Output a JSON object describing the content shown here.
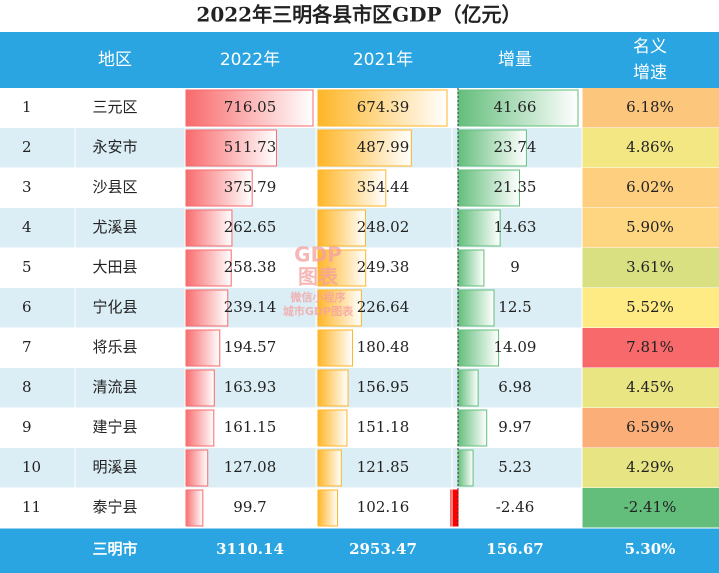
{
  "title": "2022年三明各县市区GDP（亿元）",
  "table": {
    "header": [
      "地区",
      "2022年",
      "2021年",
      "增量"
    ],
    "header_growth": [
      "名义",
      "增速"
    ],
    "rows": [
      [
        1,
        "三元区",
        716.05,
        674.39,
        41.66,
        {
          "value": 6.18,
          "label": "6.18%"
        }
      ],
      [
        2,
        "永安市",
        511.73,
        487.99,
        23.74,
        {
          "value": 4.86,
          "label": "4.86%"
        }
      ],
      [
        3,
        "沙县区",
        375.79,
        354.44,
        21.35,
        {
          "value": 6.02,
          "label": "6.02%"
        }
      ],
      [
        4,
        "尤溪县",
        262.65,
        248.02,
        14.63,
        {
          "value": 5.9,
          "label": "5.90%"
        }
      ],
      [
        5,
        "大田县",
        258.38,
        249.38,
        9,
        {
          "value": 3.61,
          "label": "3.61%"
        }
      ],
      [
        6,
        "宁化县",
        239.14,
        226.64,
        12.5,
        {
          "value": 5.52,
          "label": "5.52%"
        }
      ],
      [
        7,
        "将乐县",
        194.57,
        180.48,
        14.09,
        {
          "value": 7.81,
          "label": "7.81%"
        }
      ],
      [
        8,
        "清流县",
        163.93,
        156.95,
        6.98,
        {
          "value": 4.45,
          "label": "4.45%"
        }
      ],
      [
        9,
        "建宁县",
        161.15,
        151.18,
        9.97,
        {
          "value": 6.59,
          "label": "6.59%"
        }
      ],
      [
        10,
        "明溪县",
        127.08,
        121.85,
        5.23,
        {
          "value": 4.29,
          "label": "4.29%"
        }
      ],
      [
        11,
        "泰宁县",
        99.7,
        102.16,
        -2.46,
        {
          "value": -2.41,
          "label": "-2.41%"
        }
      ]
    ],
    "footer": [
      "三明市",
      3110.14,
      2953.47,
      156.67,
      {
        "value": 5.3,
        "label": "5.30%"
      }
    ]
  },
  "watermark": [
    "GDP",
    "图表",
    "微信小程序",
    "城市GDP图表"
  ]
}
